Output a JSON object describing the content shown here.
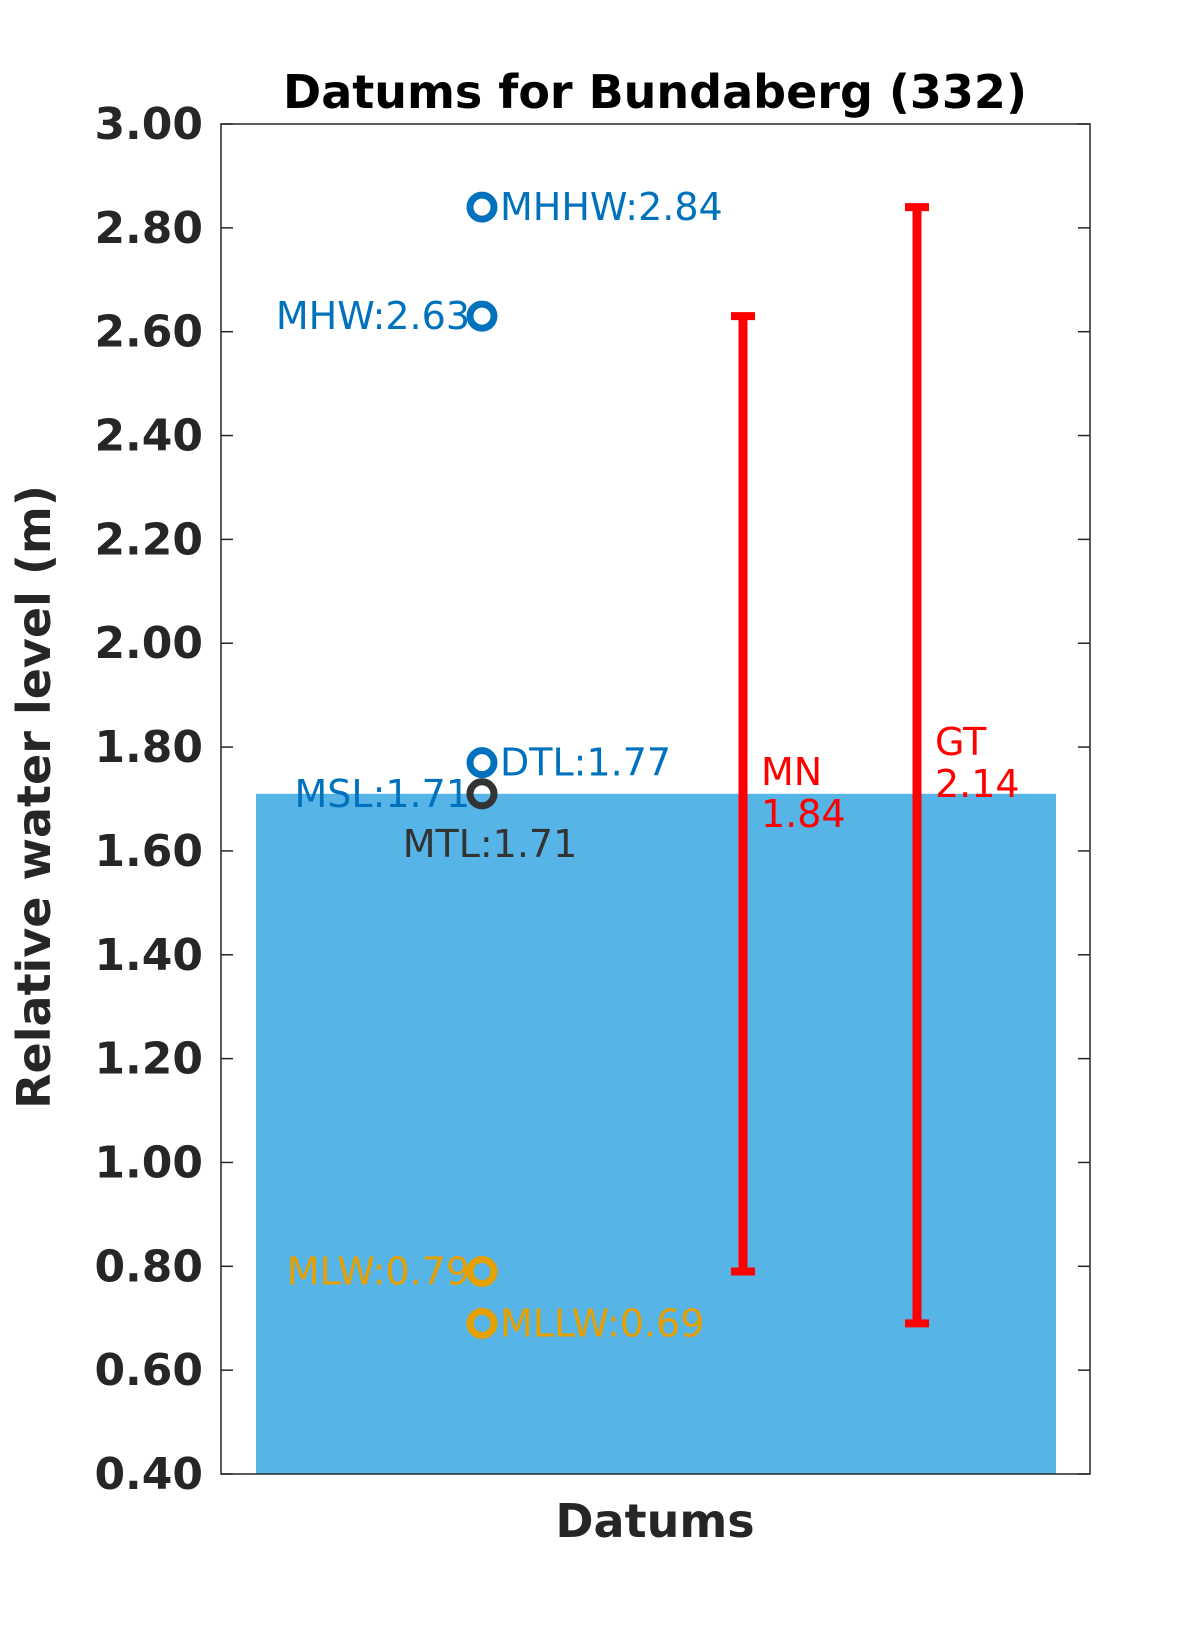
{
  "chart_data": {
    "type": "bar",
    "title": "Datums for Bundaberg (332)",
    "xlabel": "Datums",
    "ylabel": "Relative water level (m)",
    "ylim": [
      0.4,
      3.0
    ],
    "yticks": [
      "0.40",
      "0.60",
      "0.80",
      "1.00",
      "1.20",
      "1.40",
      "1.60",
      "1.80",
      "2.00",
      "2.20",
      "2.40",
      "2.60",
      "2.80",
      "3.00"
    ],
    "grid": false,
    "bar": {
      "value": 1.71,
      "color": "#56B4E6"
    },
    "datums": [
      {
        "label": "MHHW:2.84",
        "value": 2.84,
        "color": "#0072BD",
        "side": "right"
      },
      {
        "label": "MHW:2.63",
        "value": 2.63,
        "color": "#0072BD",
        "side": "left"
      },
      {
        "label": "DTL:1.77",
        "value": 1.77,
        "color": "#0072BD",
        "side": "right"
      },
      {
        "label": "MSL:1.71",
        "value": 1.71,
        "color": "#0072BD",
        "side": "left"
      },
      {
        "label": "MTL:1.71",
        "value": 1.71,
        "color": "#333333",
        "side": "below"
      },
      {
        "label": "MLW:0.79",
        "value": 0.79,
        "color": "#E6A000",
        "side": "left"
      },
      {
        "label": "MLLW:0.69",
        "value": 0.69,
        "color": "#E6A000",
        "side": "right"
      }
    ],
    "ranges": [
      {
        "name": "MN",
        "value": "1.84",
        "low": 0.79,
        "high": 2.63,
        "color": "#FF0000"
      },
      {
        "name": "GT",
        "value": "2.14",
        "low": 0.69,
        "high": 2.84,
        "color": "#FF0000"
      }
    ]
  }
}
